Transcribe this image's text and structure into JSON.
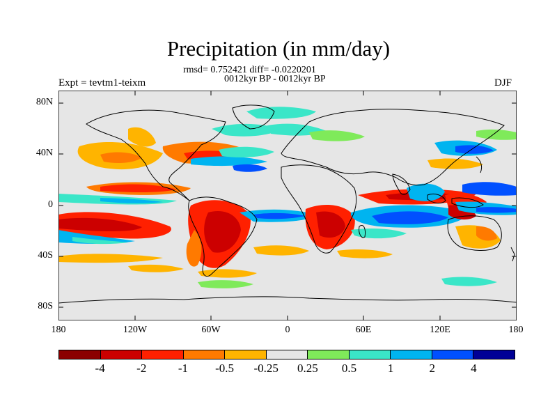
{
  "title": "Precipitation (in mm/day)",
  "stats_line": "rmsd= 0.752421 diff= -0.0220201",
  "period_line": "0012kyr BP - 0012kyr BP",
  "left_string": "Expt = tevtm1-teixm",
  "right_string": "DJF",
  "y_ticks": [
    "80N",
    "40N",
    "0",
    "40S",
    "80S"
  ],
  "x_ticks": [
    "180",
    "120W",
    "60W",
    "0",
    "60E",
    "120E",
    "180"
  ],
  "colorbar": {
    "colors": [
      "#8b0000",
      "#cc0000",
      "#ff2000",
      "#ff7a00",
      "#ffb400",
      "#e6e6e6",
      "#7fea5a",
      "#3ae6c8",
      "#00b4f0",
      "#0050ff",
      "#000096"
    ],
    "labels": [
      "-4",
      "-2",
      "-1",
      "-0.5",
      "-0.25",
      "0.25",
      "0.5",
      "1",
      "2",
      "4"
    ]
  }
}
